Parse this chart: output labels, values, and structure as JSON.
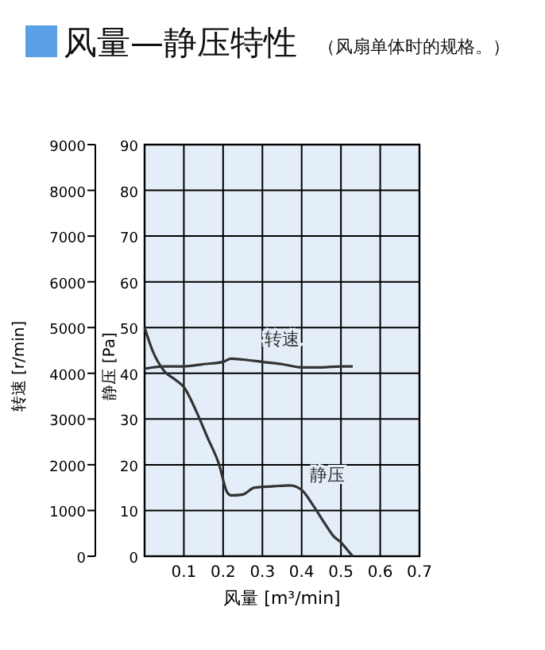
{
  "chart_data": {
    "type": "line",
    "title": "风量—静压特性",
    "subtitle": "（风扇单体时的规格。）",
    "xlabel": "风量 [m³/min]",
    "ylabel": "静压 [Pa]",
    "y2label": "转速 [r/min]",
    "xlim": [
      0,
      0.7
    ],
    "xticks": [
      0.1,
      0.2,
      0.3,
      0.4,
      0.5,
      0.6,
      0.7
    ],
    "ylim": [
      0,
      90
    ],
    "yticks": [
      0,
      10,
      20,
      30,
      40,
      50,
      60,
      70,
      80,
      90
    ],
    "y2lim": [
      0,
      9000
    ],
    "y2ticks": [
      0,
      1000,
      2000,
      3000,
      4000,
      5000,
      6000,
      7000,
      8000,
      9000
    ],
    "grid": true,
    "series": [
      {
        "name": "转速",
        "color": "#333333",
        "axis": "y2",
        "x": [
          0,
          0.05,
          0.1,
          0.15,
          0.2,
          0.22,
          0.25,
          0.3,
          0.35,
          0.4,
          0.45,
          0.5,
          0.53
        ],
        "values": [
          4100,
          4150,
          4150,
          4200,
          4250,
          4320,
          4300,
          4250,
          4200,
          4130,
          4130,
          4150,
          4150
        ]
      },
      {
        "name": "静压",
        "color": "#333333",
        "x": [
          0,
          0.02,
          0.05,
          0.08,
          0.1,
          0.13,
          0.16,
          0.19,
          0.21,
          0.22,
          0.25,
          0.28,
          0.33,
          0.37,
          0.4,
          0.43,
          0.46,
          0.48,
          0.5,
          0.52,
          0.53
        ],
        "values": [
          50,
          45,
          40.5,
          38.5,
          37,
          32,
          26,
          20,
          14,
          13.3,
          13.5,
          15,
          15.3,
          15.5,
          14.5,
          11,
          7,
          4.5,
          3,
          1,
          0
        ]
      }
    ]
  }
}
